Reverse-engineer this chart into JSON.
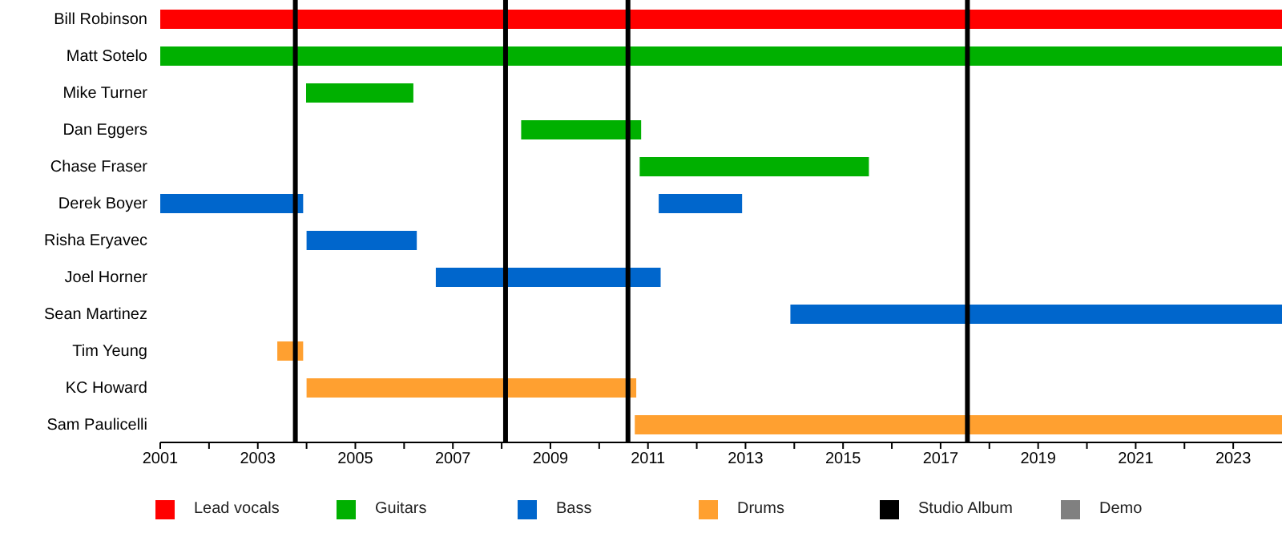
{
  "chart_data": {
    "type": "bar",
    "orientation": "horizontal",
    "categories": [
      "Bill Robinson",
      "Matt Sotelo",
      "Mike Turner",
      "Dan Eggers",
      "Chase Fraser",
      "Derek Boyer",
      "Risha Eryavec",
      "Joel Horner",
      "Sean Martinez",
      "Tim Yeung",
      "KC Howard",
      "Sam Paulicelli"
    ],
    "series": [
      {
        "name": "Lead vocals",
        "color": "#ff0000",
        "base": [
          2001,
          null,
          null,
          null,
          null,
          null,
          null,
          null,
          null,
          null,
          null,
          null
        ],
        "values": [
          23,
          null,
          null,
          null,
          null,
          null,
          null,
          null,
          null,
          null,
          null,
          null
        ]
      },
      {
        "name": "Guitars",
        "color": "#00b000",
        "base": [
          null,
          2001,
          2003.99,
          2008.4,
          2010.83,
          null,
          null,
          null,
          null,
          null,
          null,
          null
        ],
        "values": [
          null,
          23,
          2.2,
          2.46,
          4.7,
          null,
          null,
          null,
          null,
          null,
          null,
          null
        ]
      },
      {
        "name": "Bass",
        "color": "#0066cc",
        "base": [
          null,
          null,
          null,
          null,
          null,
          2001,
          2004,
          2006.65,
          2013.92,
          null,
          null,
          null
        ],
        "values": [
          null,
          null,
          null,
          null,
          null,
          2.93,
          2.26,
          4.61,
          10.08,
          null,
          null,
          null
        ]
      },
      {
        "color": "#0066cc",
        "base": [
          null,
          null,
          null,
          null,
          null,
          2011.22,
          null,
          null,
          null,
          null,
          null,
          null
        ],
        "values": [
          null,
          null,
          null,
          null,
          null,
          1.71,
          null,
          null,
          null,
          null,
          null,
          null
        ]
      },
      {
        "name": "Drums",
        "color": "#ffa030",
        "base": [
          null,
          null,
          null,
          null,
          null,
          null,
          null,
          null,
          null,
          2003.4,
          2004,
          2010.73
        ],
        "values": [
          null,
          null,
          null,
          null,
          null,
          null,
          null,
          null,
          null,
          0.53,
          6.76,
          13.27
        ]
      },
      {
        "name": "Demo",
        "color": "#808080",
        "values": [
          null,
          null,
          null,
          null,
          null,
          null,
          null,
          null,
          null,
          null,
          null,
          null
        ]
      }
    ],
    "ref_lines": [
      {
        "axis": "x",
        "value": 2003.77,
        "label": "Studio Album",
        "color": "#000000"
      },
      {
        "axis": "x",
        "value": 2008.08,
        "color": "#000000"
      },
      {
        "axis": "x",
        "value": 2010.59,
        "color": "#000000"
      },
      {
        "axis": "x",
        "value": 2017.55,
        "color": "#000000"
      }
    ],
    "xlim": [
      2001,
      2024
    ],
    "xticks": [
      2001,
      {
        "value": 2002,
        "label": null
      },
      2003,
      {
        "value": 2004,
        "label": null
      },
      2005,
      {
        "value": 2006,
        "label": null
      },
      2007,
      {
        "value": 2008,
        "label": null
      },
      2009,
      {
        "value": 2010,
        "label": null
      },
      2011,
      {
        "value": 2012,
        "label": null
      },
      2013,
      {
        "value": 2014,
        "label": null
      },
      2015,
      {
        "value": 2016,
        "label": null
      },
      2017,
      {
        "value": 2018,
        "label": null
      },
      2019,
      {
        "value": 2020,
        "label": null
      },
      2021,
      {
        "value": 2022,
        "label": null
      },
      2023
    ],
    "legend": "bottom"
  }
}
